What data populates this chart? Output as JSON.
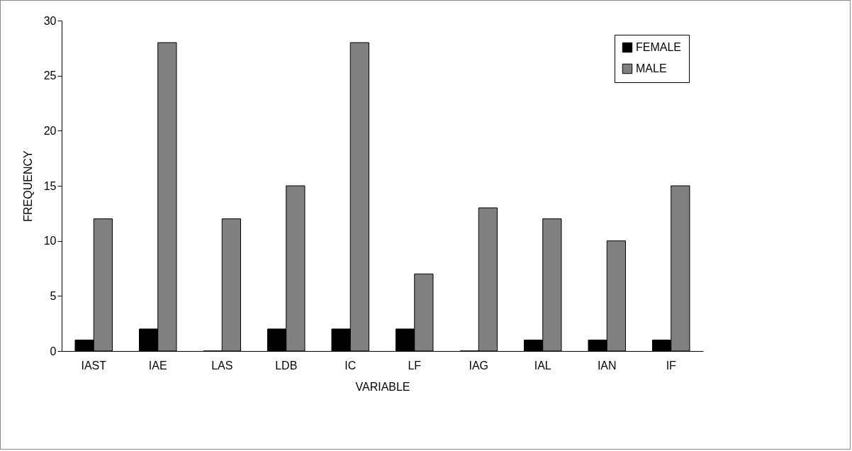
{
  "chart_data": {
    "type": "bar",
    "xlabel": "VARIABLE",
    "ylabel": "FREQUENCY",
    "categories": [
      "IAST",
      "IAE",
      "LAS",
      "LDB",
      "IC",
      "LF",
      "IAG",
      "IAL",
      "IAN",
      "IF"
    ],
    "series": [
      {
        "name": "FEMALE",
        "color": "#000000",
        "values": [
          1,
          2,
          0,
          2,
          2,
          2,
          0,
          1,
          1,
          1
        ]
      },
      {
        "name": "MALE",
        "color": "#808080",
        "values": [
          12,
          28,
          12,
          15,
          28,
          7,
          13,
          12,
          10,
          15
        ]
      }
    ],
    "ylim": [
      0,
      30
    ],
    "yticks": [
      0,
      5,
      10,
      15,
      20,
      25,
      30
    ],
    "grid": false,
    "legend": "top right"
  }
}
